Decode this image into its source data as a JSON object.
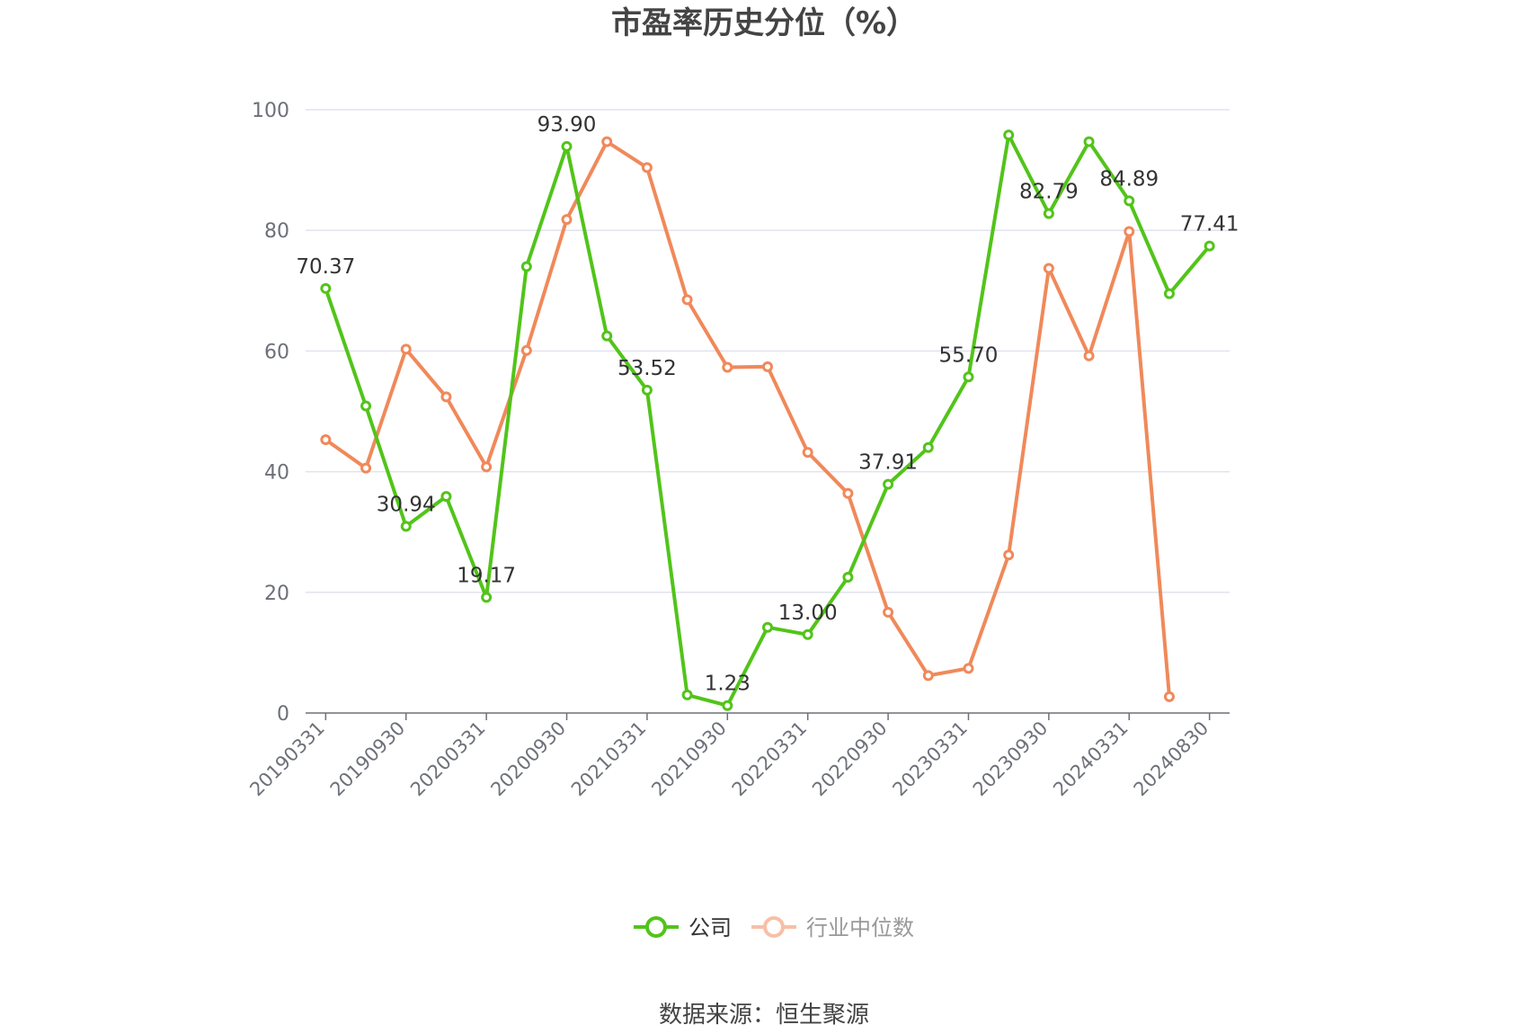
{
  "chart_data": {
    "type": "line",
    "title": "市盈率历史分位（%）",
    "source": "数据来源：恒生聚源",
    "ylim": [
      0,
      100
    ],
    "yticks": [
      "0",
      "20",
      "40",
      "60",
      "80",
      "100"
    ],
    "xtick_labels": [
      "20190331",
      "20190930",
      "20200331",
      "20200930",
      "20210331",
      "20210930",
      "20220331",
      "20220930",
      "20230331",
      "20230930",
      "20240331",
      "20240830"
    ],
    "x": [
      "20190331",
      "",
      "20190930",
      "",
      "20200331",
      "",
      "20200930",
      "",
      "20210331",
      "",
      "20210930",
      "",
      "20220331",
      "",
      "20220930",
      "",
      "20230331",
      "",
      "20230930",
      "",
      "20240331",
      "",
      "20240830"
    ],
    "grid": true,
    "legend_position": "bottom",
    "series": [
      {
        "name": "公司",
        "color": "#52c41a",
        "values": [
          70.37,
          50.9,
          30.94,
          35.9,
          19.17,
          74.0,
          93.9,
          62.5,
          53.52,
          3.0,
          1.23,
          14.2,
          13.0,
          22.5,
          37.91,
          44.0,
          55.7,
          95.8,
          82.79,
          94.7,
          84.89,
          69.5,
          77.41
        ],
        "labels": [
          "70.37",
          "",
          "30.94",
          "",
          "19.17",
          "",
          "93.90",
          "",
          "53.52",
          "",
          "1.23",
          "",
          "13.00",
          "",
          "37.91",
          "",
          "55.70",
          "",
          "82.79",
          "",
          "84.89",
          "",
          "77.41"
        ]
      },
      {
        "name": "行业中位数",
        "color": "#f0895a",
        "values": [
          45.3,
          40.6,
          60.3,
          52.4,
          40.8,
          60.1,
          81.8,
          94.7,
          90.4,
          68.5,
          57.3,
          57.4,
          43.2,
          36.4,
          16.7,
          6.2,
          7.4,
          26.2,
          73.7,
          59.2,
          79.8,
          2.7,
          null
        ]
      }
    ]
  }
}
